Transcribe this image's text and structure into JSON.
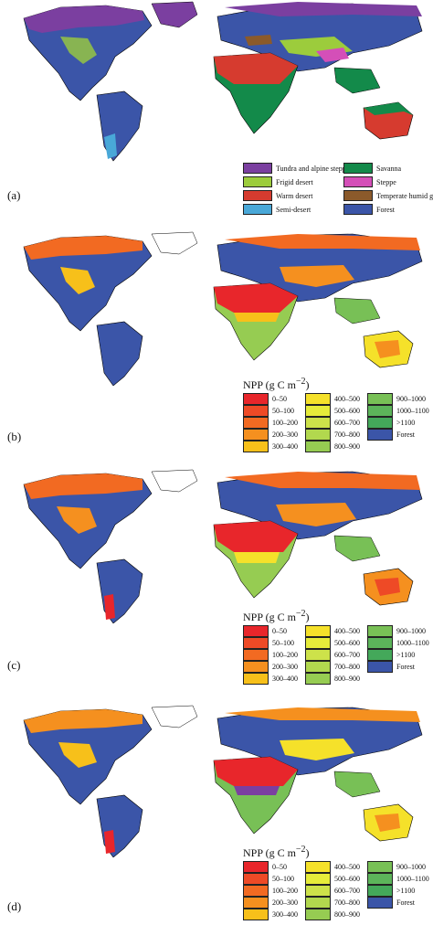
{
  "panels": {
    "a": {
      "label": "(a)",
      "legend": [
        {
          "name": "Tundra and alpine steppe",
          "color": "#7b3fa0"
        },
        {
          "name": "Frigid desert",
          "color": "#9ccc3c"
        },
        {
          "name": "Warm desert",
          "color": "#d63b2f"
        },
        {
          "name": "Semi-desert",
          "color": "#49a8d8"
        },
        {
          "name": "Savanna",
          "color": "#138a4a"
        },
        {
          "name": "Steppe",
          "color": "#d44fb8"
        },
        {
          "name": "Temperate humid grasslan",
          "color": "#8b5a2b"
        },
        {
          "name": "Forest",
          "color": "#3b55a8"
        }
      ]
    },
    "b": {
      "label": "(b)"
    },
    "c": {
      "label": "(c)"
    },
    "d": {
      "label": "(d)"
    },
    "npp_legend": {
      "title": "NPP (g C m",
      "title_sup": "−2",
      "title_end": ")",
      "items": [
        {
          "name": "0–50",
          "color": "#e8262b"
        },
        {
          "name": "50–100",
          "color": "#ee4a26"
        },
        {
          "name": "100–200",
          "color": "#f26a22"
        },
        {
          "name": "200–300",
          "color": "#f5901f"
        },
        {
          "name": "300–400",
          "color": "#f7c01a"
        },
        {
          "name": "400–500",
          "color": "#f5e12a"
        },
        {
          "name": "500–600",
          "color": "#e6ec3a"
        },
        {
          "name": "600–700",
          "color": "#cde24a"
        },
        {
          "name": "700–800",
          "color": "#b2d84e"
        },
        {
          "name": "800–900",
          "color": "#96cc52"
        },
        {
          "name": "900–1000",
          "color": "#78c056"
        },
        {
          "name": "1000–1100",
          "color": "#5cb45a"
        },
        {
          ">1100": "",
          "name": ">1100",
          "color": "#44a85a"
        },
        {
          "name": "Forest",
          "color": "#3b55a8"
        }
      ]
    }
  }
}
